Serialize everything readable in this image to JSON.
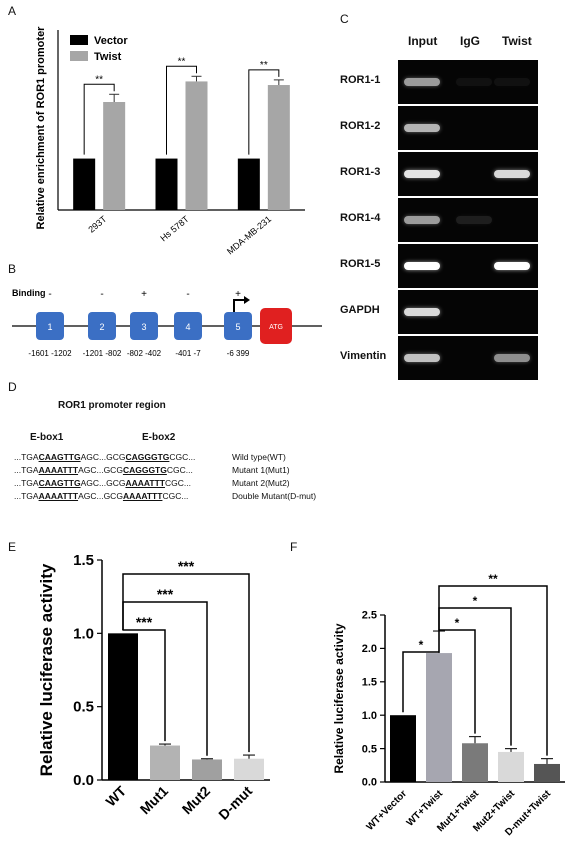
{
  "panel_labels": [
    "A",
    "B",
    "C",
    "D",
    "E",
    "F"
  ],
  "chart_data": [
    {
      "panel": "A",
      "type": "bar",
      "ylabel": "Relative enrichment of ROR1 promoter",
      "categories": [
        "293T",
        "Hs 578T",
        "MDA-MB-231"
      ],
      "series": [
        {
          "name": "Vector",
          "color": "#000000",
          "values": [
            1.0,
            1.0,
            1.0
          ],
          "errors": [
            0,
            0,
            0
          ]
        },
        {
          "name": "Twist",
          "color": "#a6a6a6",
          "values": [
            2.1,
            2.5,
            2.43
          ],
          "errors": [
            0.15,
            0.1,
            0.1
          ]
        }
      ],
      "significance": [
        "**",
        "**",
        "**"
      ],
      "ylim": [
        0,
        3.5
      ],
      "legend_position": "top-left"
    },
    {
      "panel": "E",
      "type": "bar",
      "ylabel": "Relative luciferase activity",
      "categories": [
        "WT",
        "Mut1",
        "Mut2",
        "D-mut"
      ],
      "values": [
        1.0,
        0.235,
        0.14,
        0.145
      ],
      "errors": [
        0,
        0.01,
        0.005,
        0.025
      ],
      "colors": [
        "#000000",
        "#b3b3b3",
        "#a0a0a0",
        "#d9d9d9"
      ],
      "yticks": [
        "0.0",
        "0.5",
        "1.0",
        "1.5"
      ],
      "ylim": [
        0,
        1.5
      ],
      "comparisons": [
        {
          "from": 0,
          "to": 1,
          "label": "***"
        },
        {
          "from": 0,
          "to": 2,
          "label": "***"
        },
        {
          "from": 0,
          "to": 3,
          "label": "***"
        }
      ]
    },
    {
      "panel": "F",
      "type": "bar",
      "ylabel": "Relative luciferase activity",
      "categories": [
        "WT+Vector",
        "WT+Twist",
        "Mut1+Twist",
        "Mut2+Twist",
        "D-mut+Twist"
      ],
      "values": [
        1.0,
        1.93,
        0.58,
        0.45,
        0.27
      ],
      "errors": [
        0,
        0.33,
        0.1,
        0.05,
        0.08
      ],
      "colors": [
        "#000000",
        "#a6a6b0",
        "#7a7a7a",
        "#d9d9d9",
        "#555555"
      ],
      "yticks": [
        "0.0",
        "0.5",
        "1.0",
        "1.5",
        "2.0",
        "2.5"
      ],
      "ylim": [
        0,
        2.5
      ],
      "comparisons": [
        {
          "from": 0,
          "to": 1,
          "label": "*"
        },
        {
          "from": 1,
          "to": 2,
          "label": "*"
        },
        {
          "from": 1,
          "to": 3,
          "label": "*"
        },
        {
          "from": 1,
          "to": 4,
          "label": "**"
        }
      ]
    }
  ],
  "panel_b": {
    "binding_label": "Binding",
    "boxes": [
      {
        "number": "1",
        "binding": "-",
        "range": "-1601  -1202"
      },
      {
        "number": "2",
        "binding": "-",
        "range": "-1201  -802"
      },
      {
        "number": "3",
        "binding": "+",
        "range": "-802  -402"
      },
      {
        "number": "4",
        "binding": "-",
        "range": "-401   -7"
      },
      {
        "number": "5",
        "binding": "+",
        "range": "-6  399"
      }
    ],
    "atg_label": "ATG",
    "box_color": "#3b6fc4",
    "atg_color": "#e02020"
  },
  "panel_c": {
    "columns": [
      "Input",
      "IgG",
      "Twist"
    ],
    "rows": [
      {
        "label": "ROR1-1",
        "bands": [
          0.6,
          0.05,
          0.05
        ]
      },
      {
        "label": "ROR1-2",
        "bands": [
          0.7,
          0.0,
          0.0
        ]
      },
      {
        "label": "ROR1-3",
        "bands": [
          0.9,
          0.0,
          0.85
        ]
      },
      {
        "label": "ROR1-4",
        "bands": [
          0.6,
          0.1,
          0.0
        ]
      },
      {
        "label": "ROR1-5",
        "bands": [
          1.0,
          0.0,
          1.0
        ]
      },
      {
        "label": "GAPDH",
        "bands": [
          0.85,
          0.0,
          0.0
        ]
      },
      {
        "label": "Vimentin",
        "bands": [
          0.75,
          0.0,
          0.55
        ]
      }
    ]
  },
  "panel_d": {
    "title": "ROR1 promoter region",
    "ebox1": "E-box1",
    "ebox2": "E-box2",
    "sequences": [
      {
        "p1": "...TGA",
        "m1": "CAAGTTG",
        "p2": "AGC...GCG",
        "m2": "CAGGGTG",
        "p3": "CGC...",
        "label": "Wild type(WT)"
      },
      {
        "p1": "...TGA",
        "m1": "AAAATTT",
        "p2": "AGC...GCG",
        "m2": "CAGGGTG",
        "p3": "CGC...",
        "label": "Mutant 1(Mut1)"
      },
      {
        "p1": "...TGA",
        "m1": "CAAGTTG",
        "p2": "AGC...GCG",
        "m2": "AAAATTT",
        "p3": "CGC...",
        "label": "Mutant 2(Mut2)"
      },
      {
        "p1": "...TGA",
        "m1": "AAAATTT",
        "p2": "AGC...GCG",
        "m2": "AAAATTT",
        "p3": "CGC...",
        "label": "Double Mutant(D-mut)"
      }
    ]
  }
}
